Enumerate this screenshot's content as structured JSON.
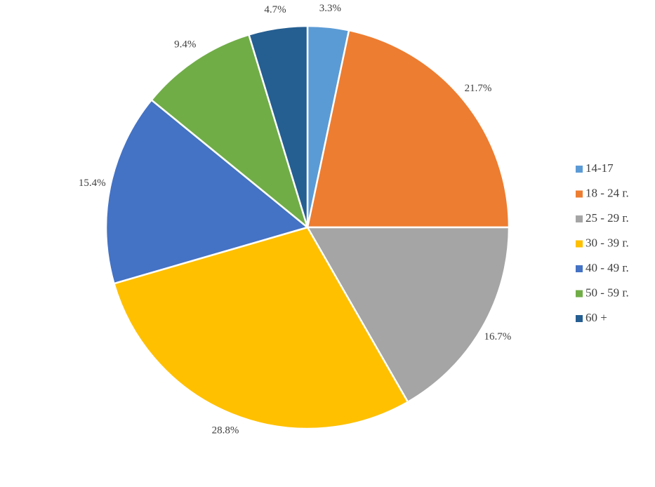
{
  "chart_data": {
    "type": "pie",
    "categories": [
      "14-17",
      "18 - 24 г.",
      "25 - 29 г.",
      "30 - 39 г.",
      "40 - 49 г.",
      "50 - 59 г.",
      "60 +"
    ],
    "values": [
      3.3,
      21.7,
      16.7,
      28.8,
      15.4,
      9.4,
      4.7
    ],
    "value_labels": [
      "3.3%",
      "21.7%",
      "16.7%",
      "28.8%",
      "15.4%",
      "9.4%",
      "4.7%"
    ],
    "colors": [
      "#5b9bd5",
      "#ed7d31",
      "#a5a5a5",
      "#ffc000",
      "#4472c4",
      "#70ad47",
      "#255e91"
    ],
    "legend": "right"
  }
}
